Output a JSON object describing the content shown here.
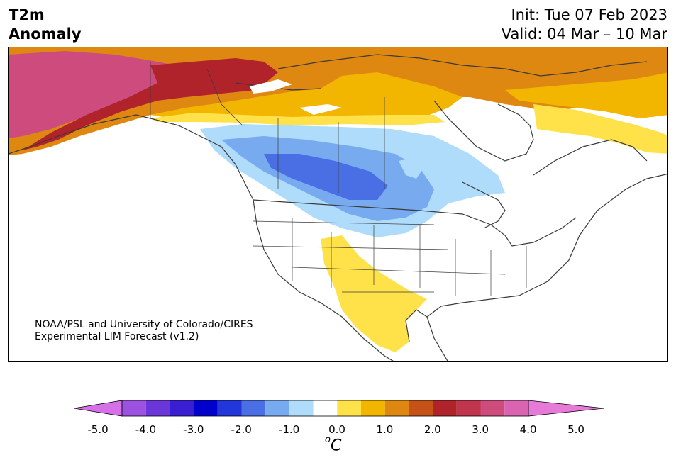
{
  "header": {
    "variable": "T2m",
    "type": "Anomaly",
    "init": "Init: Tue 07 Feb 2023",
    "valid": "Valid: 04 Mar – 10 Mar"
  },
  "credit": {
    "line1": "NOAA/PSL and University of Colorado/CIRES",
    "line2": "Experimental LIM Forecast (v1.2)"
  },
  "colorbar": {
    "unit_base": "C",
    "unit_super": "o",
    "ticks": [
      "-5.0",
      "-4.0",
      "-3.0",
      "-2.0",
      "-1.0",
      "0.0",
      "1.0",
      "2.0",
      "3.0",
      "4.0",
      "5.0"
    ],
    "colors": [
      "#d670e8",
      "#9b52e0",
      "#6a36d8",
      "#3a1fd2",
      "#0000cc",
      "#2336d9",
      "#4a6ee4",
      "#78aaf0",
      "#b0dcfb",
      "#ffffff",
      "#ffe24a",
      "#f3b600",
      "#de8812",
      "#c55318",
      "#b0232b",
      "#c0354d",
      "#cd4b7d",
      "#d965b0",
      "#e77ad8"
    ],
    "under_color": "#d670e8",
    "over_color": "#e77ad8"
  },
  "map": {
    "anomaly_regions": [
      {
        "label": "Alaska / Yukon very warm",
        "value": 4.5
      },
      {
        "label": "Northern Canada warm",
        "value": 2.0
      },
      {
        "label": "Hudson Bay / Quebec warm",
        "value": 1.5
      },
      {
        "label": "Labrador warm",
        "value": 0.8
      },
      {
        "label": "Southwest US / Mexico warm",
        "value": 0.8
      },
      {
        "label": "Northern Plains / Prairies cold",
        "value": -2.0
      }
    ]
  }
}
